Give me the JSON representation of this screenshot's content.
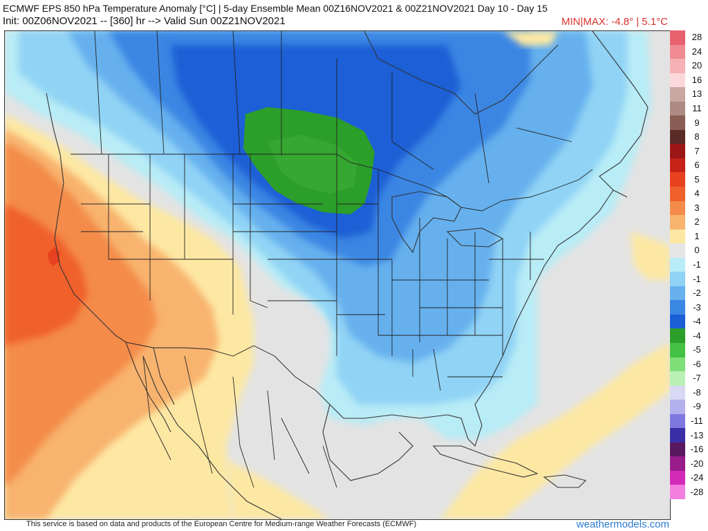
{
  "header": {
    "title": "ECMWF EPS 850 hPa Temperature Anomaly [°C] | 5-day Ensemble Mean 00Z16NOV2021 & 00Z21NOV2021   Day 10 - Day 15",
    "init_line": "Init: 00Z06NOV2021 -- [360] hr --> Valid Sun 00Z21NOV2021",
    "minmax": "MIN|MAX: -4.8° | 5.1°C"
  },
  "legend": {
    "items": [
      {
        "label": "28",
        "color": "#e8616e"
      },
      {
        "label": "24",
        "color": "#f08a93"
      },
      {
        "label": "20",
        "color": "#f6b1b6"
      },
      {
        "label": "16",
        "color": "#fbd8db"
      },
      {
        "label": "13",
        "color": "#c9a8a2"
      },
      {
        "label": "11",
        "color": "#ad8a83"
      },
      {
        "label": "9",
        "color": "#8a5e55"
      },
      {
        "label": "8",
        "color": "#5a2a26"
      },
      {
        "label": "7",
        "color": "#9b1614"
      },
      {
        "label": "6",
        "color": "#c62218"
      },
      {
        "label": "5",
        "color": "#e8411f"
      },
      {
        "label": "4",
        "color": "#f0602a"
      },
      {
        "label": "3",
        "color": "#f48b4a"
      },
      {
        "label": "2",
        "color": "#f8b36e"
      },
      {
        "label": "1",
        "color": "#fde8a3"
      },
      {
        "label": "0",
        "color": "#e6e6e6"
      },
      {
        "label": "-1",
        "color": "#b8ecf6"
      },
      {
        "label": "-1",
        "color": "#90d3f5"
      },
      {
        "label": "-2",
        "color": "#66b0ee"
      },
      {
        "label": "-3",
        "color": "#3a86e3"
      },
      {
        "label": "-4",
        "color": "#1a5fd6"
      },
      {
        "label": "-4",
        "color": "#2c9e2a"
      },
      {
        "label": "-5",
        "color": "#43c243"
      },
      {
        "label": "-6",
        "color": "#7fe07a"
      },
      {
        "label": "-7",
        "color": "#b9f0b5"
      },
      {
        "label": "-8",
        "color": "#d9d9f5"
      },
      {
        "label": "-9",
        "color": "#b3b0ee"
      },
      {
        "label": "-11",
        "color": "#7f78e0"
      },
      {
        "label": "-13",
        "color": "#3b2fa8"
      },
      {
        "label": "-16",
        "color": "#5a1860"
      },
      {
        "label": "-20",
        "color": "#9a1c8c"
      },
      {
        "label": "-24",
        "color": "#d42ab8"
      },
      {
        "label": "-28",
        "color": "#f27ee0"
      }
    ]
  },
  "footer": {
    "credit": "This service is based on data and products of the European Centre for Medium-range Weather Forecasts (ECMWF)",
    "brand": "weathermodels.com"
  }
}
